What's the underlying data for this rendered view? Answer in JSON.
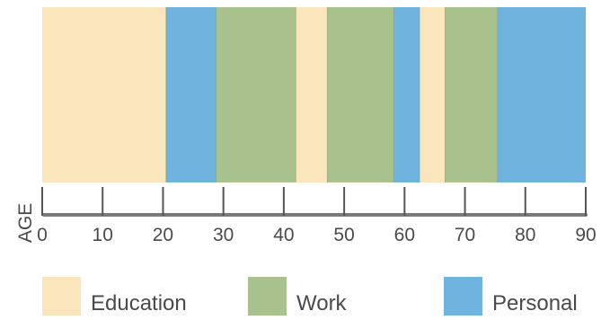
{
  "chart_data": {
    "type": "timeline",
    "title": "",
    "xlabel": "AGE",
    "ylabel": "",
    "xlim": [
      0,
      90
    ],
    "xticks": [
      0,
      10,
      20,
      30,
      40,
      50,
      60,
      70,
      80,
      90
    ],
    "categories": [
      "Education",
      "Work",
      "Personal"
    ],
    "colors": {
      "Education": "#fbe5bd",
      "Work": "#a9c28d",
      "Personal": "#6fb4de"
    },
    "segments": [
      {
        "category": "Education",
        "start": 0,
        "end": 20.5
      },
      {
        "category": "Personal",
        "start": 20.5,
        "end": 28.8
      },
      {
        "category": "Work",
        "start": 28.8,
        "end": 42.0
      },
      {
        "category": "Education",
        "start": 42.0,
        "end": 47.2
      },
      {
        "category": "Work",
        "start": 47.2,
        "end": 58.2
      },
      {
        "category": "Personal",
        "start": 58.2,
        "end": 62.5
      },
      {
        "category": "Education",
        "start": 62.5,
        "end": 66.7
      },
      {
        "category": "Work",
        "start": 66.7,
        "end": 75.4
      },
      {
        "category": "Personal",
        "start": 75.4,
        "end": 90
      }
    ],
    "legend_position": "bottom"
  },
  "legend": [
    {
      "label": "Education",
      "color": "#fbe5bd"
    },
    {
      "label": "Work",
      "color": "#a9c28d"
    },
    {
      "label": "Personal",
      "color": "#6fb4de"
    }
  ]
}
